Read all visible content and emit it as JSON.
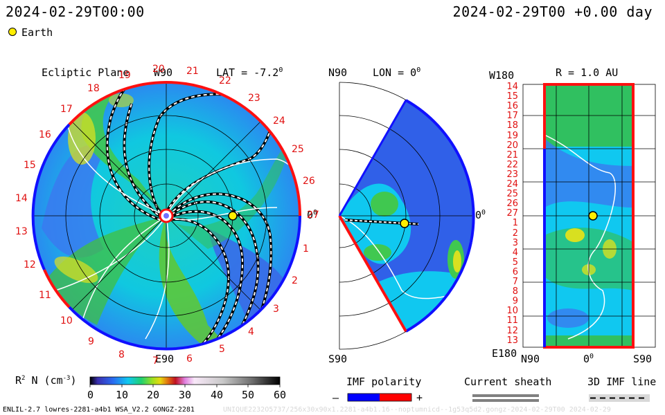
{
  "header": {
    "left_time": "2024-02-29T00:00",
    "right_time": "2024-02-29T00 +0.00 day",
    "earth_legend": "Earth"
  },
  "panels": {
    "ecliptic": {
      "title": "Ecliptic Plane",
      "lat": "LAT = -7.2",
      "lat_sup": "0",
      "top_label": "W90",
      "bottom_label": "E90",
      "right_label": "0",
      "right_sup": "0",
      "carrington_labels": [
        "27",
        "1",
        "2",
        "3",
        "4",
        "5",
        "6",
        "7",
        "8",
        "9",
        "10",
        "11",
        "12",
        "13",
        "14",
        "15",
        "16",
        "17",
        "18",
        "19",
        "20",
        "21",
        "22",
        "23",
        "24",
        "25",
        "26"
      ]
    },
    "meridional": {
      "title": "LON = 0",
      "title_sup": "0",
      "top_label": "N90",
      "bottom_label": "S90",
      "right_label": "0",
      "right_sup": "0"
    },
    "radial": {
      "title": "R = 1.0 AU",
      "top_label": "W180",
      "bottom_label": "E180",
      "x_ticks": [
        "N90",
        "0",
        "S90"
      ],
      "x_mid_sup": "0",
      "y_labels": [
        "14",
        "15",
        "16",
        "17",
        "18",
        "19",
        "20",
        "21",
        "22",
        "23",
        "24",
        "25",
        "26",
        "27",
        "1",
        "2",
        "3",
        "4",
        "5",
        "6",
        "7",
        "8",
        "9",
        "10",
        "11",
        "12",
        "13"
      ]
    }
  },
  "colorbar": {
    "label": "R",
    "label_sup": "2",
    "label_rest": " N (cm",
    "label_exp": "-3",
    "label_close": ")",
    "ticks": [
      "0",
      "10",
      "20",
      "30",
      "40",
      "50",
      "60"
    ],
    "range": [
      0,
      60
    ],
    "colors": [
      "#000000",
      "#3a2fb0",
      "#2a6af0",
      "#10c8f0",
      "#20d070",
      "#60d020",
      "#d8d810",
      "#e07010",
      "#c01020",
      "#e080e0",
      "#f8e0f8",
      "#d0d0d0",
      "#808080",
      "#202020"
    ]
  },
  "legends": {
    "imf_title": "IMF polarity",
    "imf_minus": "–",
    "imf_plus": "+",
    "sheath_title": "Current sheath",
    "imf3d_title": "3D IMF line",
    "imf_neg_color": "#0000ff",
    "imf_pos_color": "#ff0000"
  },
  "footer": {
    "left": "ENLIL-2.7 lowres-2281-a4b1 WSA_V2.2 GONGZ-2281",
    "right_faint": "UNIQUE2232O5737/256x30x90x1.2281-a4b1.16--noptumnicd--1g53q5d2.gongz-2024-02-29T00  2024-02-29"
  },
  "chart_data": {
    "type": "heatmap",
    "title": "",
    "quantity": "R^2 N (cm^-3)",
    "color_range": [
      0,
      60
    ],
    "panels": [
      {
        "name": "Ecliptic Plane",
        "lat_deg": -7.2,
        "earth_r_au": 1.0,
        "earth_lon_deg": 0
      },
      {
        "name": "LON = 0",
        "earth_r_au": 1.0,
        "earth_lat_deg": -7.2
      },
      {
        "name": "R = 1.0 AU",
        "earth_carrington": 27
      }
    ]
  }
}
